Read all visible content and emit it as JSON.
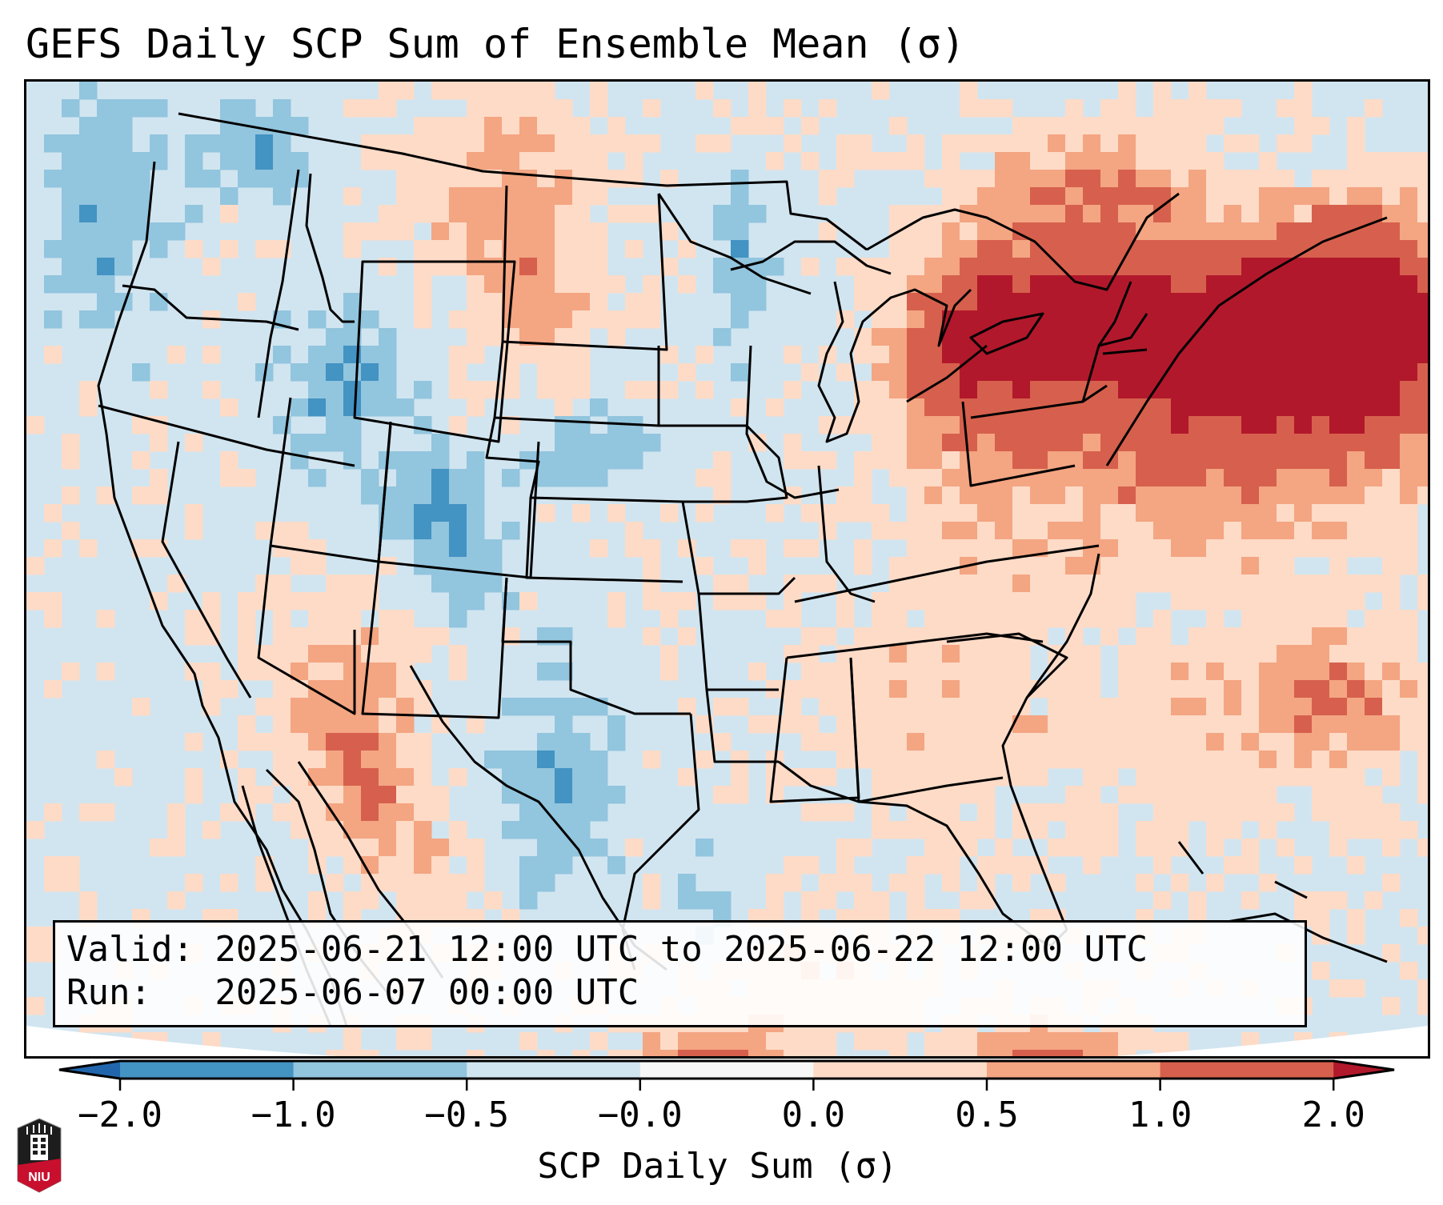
{
  "title": "GEFS Daily SCP Sum of Ensemble Mean (σ)",
  "info": {
    "valid": "Valid: 2025-06-21 12:00 UTC to 2025-06-22 12:00 UTC",
    "run": "Run:   2025-06-07 00:00 UTC"
  },
  "colorbar": {
    "label": "SCP Daily Sum (σ)",
    "ticks": [
      "−2.0",
      "−1.0",
      "−0.5",
      "−0.0",
      "0.0",
      "0.5",
      "1.0",
      "2.0"
    ],
    "bins": [
      {
        "range": "< -2.0",
        "color": "#2166ac"
      },
      {
        "range": "-2.0 to -1.0",
        "color": "#4393c3"
      },
      {
        "range": "-1.0 to -0.5",
        "color": "#92c5de"
      },
      {
        "range": "-0.5 to -0.0",
        "color": "#d1e5f0"
      },
      {
        "range": "-0.0 to 0.0",
        "color": "#f7f7f7"
      },
      {
        "range": "0.0 to 0.5",
        "color": "#fddbc7"
      },
      {
        "range": "0.5 to 1.0",
        "color": "#f4a582"
      },
      {
        "range": "1.0 to 2.0",
        "color": "#d6604d"
      },
      {
        "range": "> 2.0",
        "color": "#b2182b"
      }
    ],
    "extend": "both"
  },
  "logo": {
    "text": "NIU",
    "colors": {
      "red": "#c8102e",
      "black": "#1d1d1d"
    }
  },
  "chart_data": {
    "type": "heatmap",
    "title": "GEFS Daily SCP Sum of Ensemble Mean (σ)",
    "colorbar_label": "SCP Daily Sum (σ)",
    "region": "Contiguous United States",
    "valid": "2025-06-21 12:00 UTC to 2025-06-22 12:00 UTC",
    "run": "2025-06-07 00:00 UTC",
    "levels": [
      -2.0,
      -1.0,
      -0.5,
      -0.0,
      0.0,
      0.5,
      1.0,
      2.0
    ],
    "regional_anomalies": [
      {
        "area": "Northeast / New England / Lake Ontario",
        "value_range": [
          1.0,
          2.0
        ],
        "peak": ">2.0"
      },
      {
        "area": "Great Lakes (Michigan, Huron)",
        "value_range": [
          1.0,
          2.0
        ],
        "peak": ">2.0"
      },
      {
        "area": "Southern Ontario / Quebec",
        "value_range": [
          0.5,
          2.0
        ]
      },
      {
        "area": "Pennsylvania / Ohio Valley",
        "value_range": [
          0.0,
          1.0
        ]
      },
      {
        "area": "Montana / western Dakotas",
        "value_range": [
          0.0,
          1.0
        ]
      },
      {
        "area": "Southwest (Arizona / Sonora)",
        "value_range": [
          0.0,
          2.0
        ]
      },
      {
        "area": "Gulf of Mexico / Southeast coast",
        "value_range": [
          0.0,
          0.5
        ]
      },
      {
        "area": "Western Atlantic",
        "value_range": [
          0.0,
          1.0
        ]
      },
      {
        "area": "Idaho / Wyoming / Utah / Colorado",
        "value_range": [
          -1.0,
          -0.5
        ]
      },
      {
        "area": "Nebraska / Kansas",
        "value_range": [
          -1.0,
          -0.5
        ]
      },
      {
        "area": "West Texas / Eastern New Mexico",
        "value_range": [
          -1.0,
          -0.5
        ]
      },
      {
        "area": "Pacific Northwest offshore",
        "value_range": [
          -1.0,
          -0.5
        ]
      },
      {
        "area": "Remaining CONUS",
        "value_range": [
          -0.5,
          0.0
        ]
      }
    ]
  }
}
